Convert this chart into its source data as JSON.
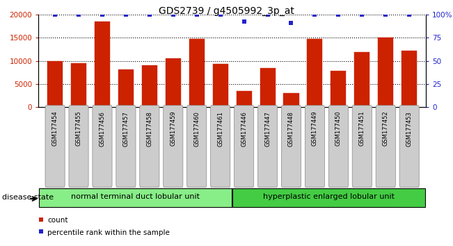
{
  "title": "GDS2739 / g4505992_3p_at",
  "samples": [
    "GSM177454",
    "GSM177455",
    "GSM177456",
    "GSM177457",
    "GSM177458",
    "GSM177459",
    "GSM177460",
    "GSM177461",
    "GSM177446",
    "GSM177447",
    "GSM177448",
    "GSM177449",
    "GSM177450",
    "GSM177451",
    "GSM177452",
    "GSM177453"
  ],
  "counts": [
    9900,
    9500,
    18600,
    8100,
    9100,
    10600,
    14800,
    9300,
    3400,
    8400,
    3000,
    14700,
    7900,
    11900,
    15100,
    12200
  ],
  "percentiles": [
    100,
    100,
    100,
    100,
    100,
    100,
    100,
    100,
    93,
    100,
    91,
    100,
    100,
    100,
    100,
    100
  ],
  "bar_color": "#cc2200",
  "dot_color": "#2222cc",
  "group1_label": "normal terminal duct lobular unit",
  "group2_label": "hyperplastic enlarged lobular unit",
  "group1_count": 8,
  "group2_count": 8,
  "group1_color": "#88ee88",
  "group2_color": "#44cc44",
  "disease_state_label": "disease state",
  "ylim_left": [
    0,
    20000
  ],
  "ylim_right": [
    0,
    100
  ],
  "yticks_left": [
    0,
    5000,
    10000,
    15000,
    20000
  ],
  "yticks_right": [
    0,
    25,
    50,
    75,
    100
  ],
  "legend_count_label": "count",
  "legend_pct_label": "percentile rank within the sample",
  "bg_color": "#ffffff",
  "tick_label_color_left": "#cc2200",
  "tick_label_color_right": "#2222cc",
  "xtick_bg_color": "#cccccc",
  "xtick_border_color": "#888888"
}
